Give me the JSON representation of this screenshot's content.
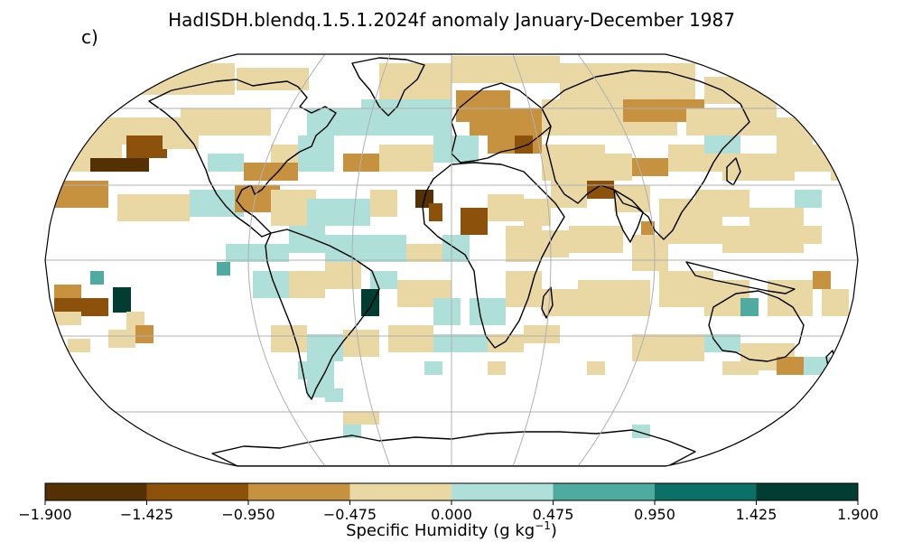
{
  "title": "HadISDH.blendq.1.5.1.2024f anomaly January-December 1987",
  "panel_label": "c)",
  "colorbar": {
    "label": "Specific Humidity (g kg",
    "label_sup": "−1",
    "label_end": ")",
    "ticks": [
      "−1.900",
      "−1.425",
      "−0.950",
      "−0.475",
      "0.000",
      "0.475",
      "0.950",
      "1.425",
      "1.900"
    ],
    "colors": [
      "#543005",
      "#8c510a",
      "#c6923f",
      "#e9d7a4",
      "#aedfd8",
      "#4faa9f",
      "#0b7066",
      "#013d33"
    ]
  },
  "map": {
    "projection": "Robinson",
    "gridlines": true,
    "coastlines": true
  }
}
